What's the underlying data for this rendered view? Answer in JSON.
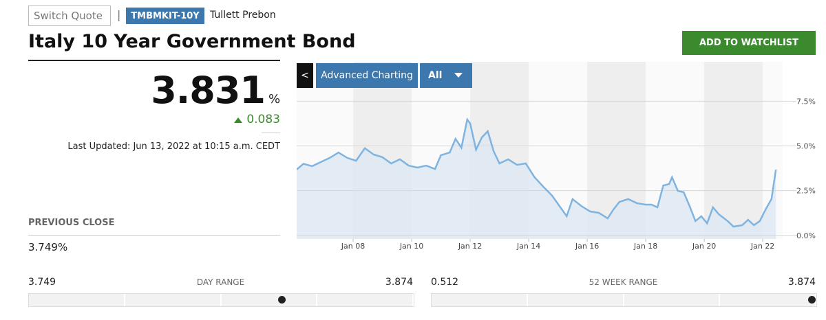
{
  "header": {
    "switch_quote": "Switch Quote",
    "separator": "|",
    "ticker": "TMBMKIT-10Y",
    "source": "Tullett Prebon",
    "title": "Italy 10 Year Government Bond",
    "watchlist_button": "ADD TO WATCHLIST"
  },
  "quote": {
    "price": 3.831,
    "unit": "%",
    "change": 0.083,
    "last_updated": "Last Updated: Jun 13, 2022 at 10:15 a.m. CEDT"
  },
  "previous_close": {
    "label": "PREVIOUS CLOSE",
    "value": "3.749%"
  },
  "day_range": {
    "label": "DAY RANGE",
    "low": 3.749,
    "high": 3.874
  },
  "week52_range": {
    "label": "52 WEEK RANGE",
    "low": 0.512,
    "high": 3.874
  },
  "chart_controls": {
    "back": "<",
    "advanced": "Advanced Charting",
    "period": "All"
  },
  "chart_data": {
    "type": "area",
    "color": "#7fb3e0",
    "fill": "#dde8f2",
    "x": [
      2006.07,
      2006.3,
      2006.6,
      2006.9,
      2007.2,
      2007.5,
      2007.8,
      2008.1,
      2008.4,
      2008.7,
      2009.0,
      2009.3,
      2009.6,
      2009.9,
      2010.2,
      2010.5,
      2010.8,
      2011.0,
      2011.3,
      2011.5,
      2011.7,
      2011.9,
      2012.0,
      2012.2,
      2012.4,
      2012.6,
      2012.8,
      2013.0,
      2013.3,
      2013.6,
      2013.9,
      2014.2,
      2014.5,
      2014.8,
      2015.1,
      2015.3,
      2015.5,
      2015.8,
      2016.1,
      2016.4,
      2016.7,
      2016.9,
      2017.1,
      2017.4,
      2017.7,
      2018.0,
      2018.2,
      2018.4,
      2018.6,
      2018.8,
      2018.9,
      2019.1,
      2019.3,
      2019.5,
      2019.7,
      2019.9,
      2020.1,
      2020.3,
      2020.5,
      2020.8,
      2021.0,
      2021.3,
      2021.5,
      2021.7,
      2021.9,
      2022.1,
      2022.3,
      2022.45
    ],
    "values": [
      3.68,
      4.0,
      3.87,
      4.1,
      4.33,
      4.63,
      4.33,
      4.17,
      4.87,
      4.52,
      4.37,
      4.02,
      4.25,
      3.9,
      3.79,
      3.9,
      3.71,
      4.48,
      4.63,
      5.4,
      4.9,
      6.48,
      6.25,
      4.79,
      5.48,
      5.82,
      4.71,
      4.02,
      4.25,
      3.94,
      4.02,
      3.25,
      2.72,
      2.22,
      1.53,
      1.07,
      2.03,
      1.64,
      1.34,
      1.26,
      0.95,
      1.45,
      1.87,
      2.03,
      1.8,
      1.72,
      1.72,
      1.57,
      2.79,
      2.87,
      3.25,
      2.49,
      2.41,
      1.64,
      0.8,
      1.07,
      0.68,
      1.57,
      1.18,
      0.8,
      0.49,
      0.57,
      0.87,
      0.57,
      0.8,
      1.45,
      2.03,
      3.68
    ],
    "xlim": [
      2006.07,
      2022.68
    ],
    "xticks": [
      {
        "value": 2008,
        "label": "Jan 08"
      },
      {
        "value": 2010,
        "label": "Jan 10"
      },
      {
        "value": 2012,
        "label": "Jan 12"
      },
      {
        "value": 2014,
        "label": "Jan 14"
      },
      {
        "value": 2016,
        "label": "Jan 16"
      },
      {
        "value": 2018,
        "label": "Jan 18"
      },
      {
        "value": 2020,
        "label": "Jan 20"
      },
      {
        "value": 2022,
        "label": "Jan 22"
      }
    ],
    "ylim": [
      -0.2,
      9.7
    ],
    "yticks": [
      {
        "value": 0,
        "label": "0.0%"
      },
      {
        "value": 2.5,
        "label": "2.5%"
      },
      {
        "value": 5,
        "label": "5.0%"
      },
      {
        "value": 7.5,
        "label": "7.5%"
      }
    ],
    "grid": true
  }
}
